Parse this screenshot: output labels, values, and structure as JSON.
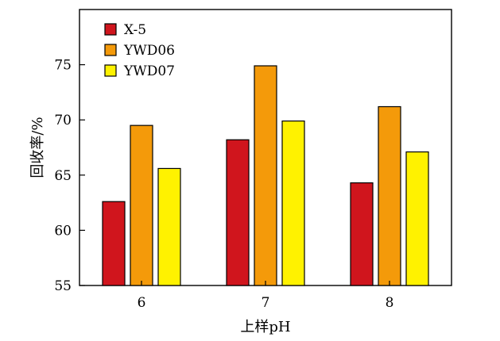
{
  "chart_data": {
    "type": "bar",
    "title": "",
    "xlabel": "上样pH",
    "ylabel": "回收率/%",
    "categories": [
      "6",
      "7",
      "8"
    ],
    "ylim": [
      55,
      80
    ],
    "yticks": [
      55,
      60,
      65,
      70,
      75
    ],
    "grid": false,
    "legend_position": "top-left",
    "series": [
      {
        "name": "X-5",
        "color": "#d0151d",
        "values": [
          62.6,
          68.2,
          64.3
        ]
      },
      {
        "name": "YWD06",
        "color": "#f49a0a",
        "values": [
          69.5,
          74.9,
          71.2
        ]
      },
      {
        "name": "YWD07",
        "color": "#fff200",
        "values": [
          65.6,
          69.9,
          67.1
        ]
      }
    ]
  }
}
